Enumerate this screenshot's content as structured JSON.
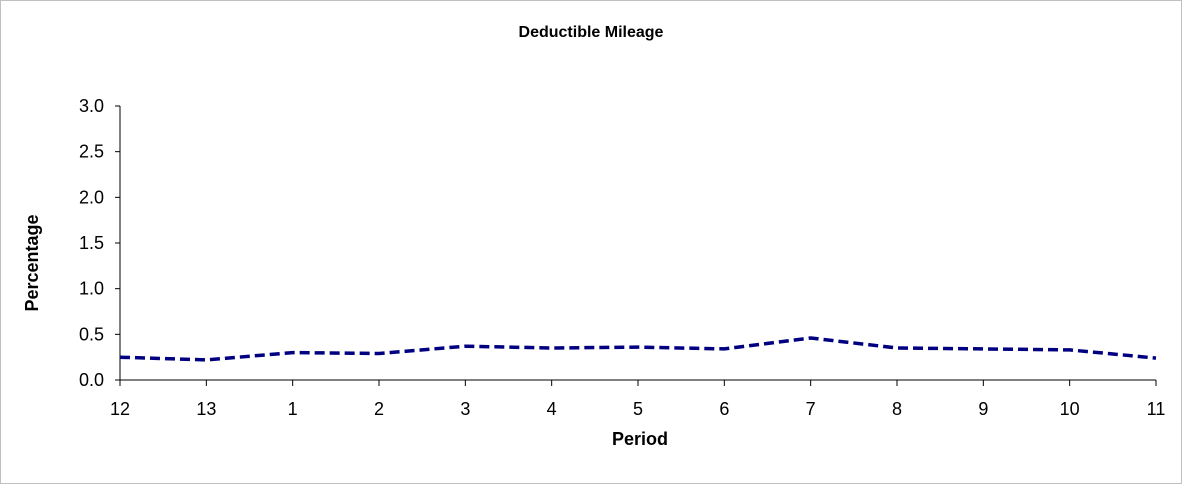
{
  "chart_data": {
    "type": "line",
    "title": "Deductible Mileage",
    "xlabel": "Period",
    "ylabel": "Percentage",
    "categories": [
      "12",
      "13",
      "1",
      "2",
      "3",
      "4",
      "5",
      "6",
      "7",
      "8",
      "9",
      "10",
      "11"
    ],
    "series": [
      {
        "values": [
          0.25,
          0.22,
          0.3,
          0.29,
          0.37,
          0.35,
          0.36,
          0.34,
          0.46,
          0.35,
          0.34,
          0.33,
          0.24
        ]
      }
    ],
    "ylim": [
      0,
      3.0
    ],
    "yticks": [
      "0.0",
      "0.5",
      "1.0",
      "1.5",
      "2.0",
      "2.5",
      "3.0"
    ],
    "line_color": "#000080",
    "line_style": "dashed",
    "grid": false,
    "legend": "none"
  }
}
